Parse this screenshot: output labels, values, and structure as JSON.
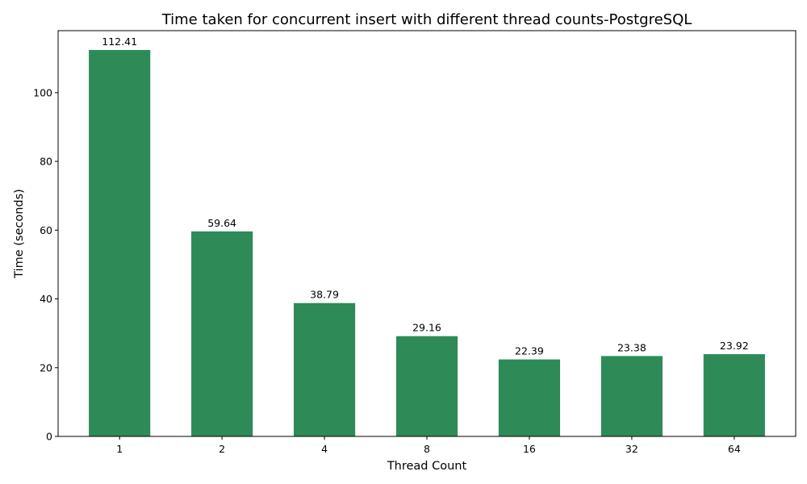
{
  "chart_data": {
    "type": "bar",
    "title": "Time taken for concurrent insert with different thread counts-PostgreSQL",
    "xlabel": "Thread Count",
    "ylabel": "Time (seconds)",
    "categories": [
      "1",
      "2",
      "4",
      "8",
      "16",
      "32",
      "64"
    ],
    "values": [
      112.41,
      59.64,
      38.79,
      29.16,
      22.39,
      23.38,
      23.92
    ],
    "data_labels": [
      "112.41",
      "59.64",
      "38.79",
      "29.16",
      "22.39",
      "23.38",
      "23.92"
    ],
    "ylim": [
      0,
      118.03
    ],
    "yticks": [
      0,
      20,
      40,
      60,
      80,
      100
    ],
    "ytick_labels": [
      "0",
      "20",
      "40",
      "60",
      "80",
      "100"
    ],
    "grid": false,
    "legend": "none",
    "bar_color": "#2e8b57"
  }
}
